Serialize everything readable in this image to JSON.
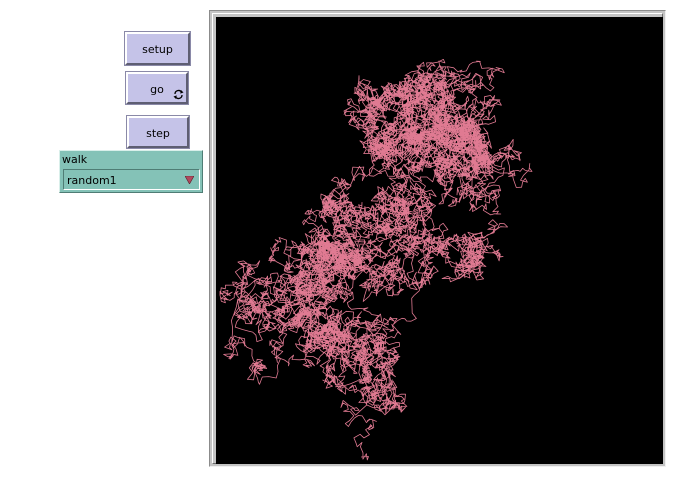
{
  "buttons": {
    "setup_label": "setup",
    "go_label": "go",
    "step_label": "step"
  },
  "chooser": {
    "label": "walk",
    "value": "random1"
  },
  "colors": {
    "button_bg": "#c5c3e8",
    "chooser_bg": "#84c2b7",
    "world_bg": "#000000",
    "turtle_and_trail": "#e07a92"
  },
  "icons": {
    "go_forever": "forever-icon",
    "chooser_arrow": "dropdown-arrow-icon",
    "turtle": "turtle-arrow-icon"
  }
}
